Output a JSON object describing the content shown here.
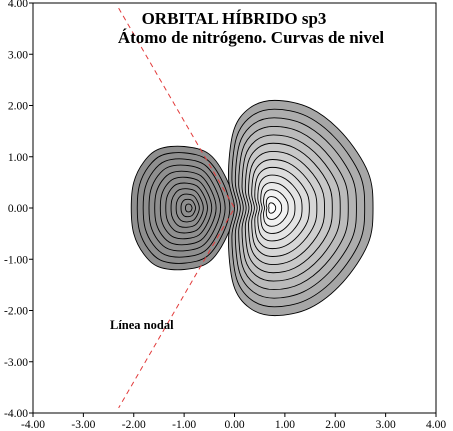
{
  "chart_data": {
    "type": "contour",
    "title": [
      "ORBITAL HÍBRIDO sp3",
      "Átomo de nitrógeno. Curvas de nivel"
    ],
    "xlabel": "",
    "ylabel": "",
    "xlim": [
      -4,
      4
    ],
    "ylim": [
      -4,
      4
    ],
    "xticks": [
      "-4.00",
      "-3.00",
      "-2.00",
      "-1.00",
      "0.00",
      "1.00",
      "2.00",
      "3.00",
      "4.00"
    ],
    "yticks": [
      "-4.00",
      "-3.00",
      "-2.00",
      "-1.00",
      "0.00",
      "1.00",
      "2.00",
      "3.00",
      "4.00"
    ],
    "annotation": "Línea nodal",
    "nodal_line": {
      "points": [
        [
          -2.3,
          3.9
        ],
        [
          0,
          0
        ],
        [
          -2.3,
          -3.9
        ]
      ],
      "color": "#e23b3b",
      "style": "dashed"
    },
    "lobes": [
      {
        "name": "negative",
        "center": [
          -0.9,
          0.0
        ],
        "outer_boundary": [
          [
            -2.0,
            0.5
          ],
          [
            -1.8,
            0.9
          ],
          [
            -1.5,
            1.15
          ],
          [
            -1.0,
            1.2
          ],
          [
            -0.5,
            1.05
          ],
          [
            -0.15,
            0.55
          ],
          [
            0.0,
            0.0
          ],
          [
            -0.15,
            -0.55
          ],
          [
            -0.5,
            -1.05
          ],
          [
            -1.0,
            -1.2
          ],
          [
            -1.5,
            -1.15
          ],
          [
            -1.8,
            -0.9
          ],
          [
            -2.0,
            -0.5
          ],
          [
            -2.05,
            0.0
          ]
        ],
        "levels": 11,
        "fill": "#8f8f8f"
      },
      {
        "name": "positive",
        "center": [
          0.72,
          0.0
        ],
        "outer_boundary": [
          [
            0.0,
            0.0
          ],
          [
            -0.12,
            0.6
          ],
          [
            -0.02,
            1.5
          ],
          [
            0.3,
            1.95
          ],
          [
            0.8,
            2.1
          ],
          [
            1.5,
            1.95
          ],
          [
            2.15,
            1.45
          ],
          [
            2.65,
            0.7
          ],
          [
            2.75,
            0.0
          ],
          [
            2.65,
            -0.7
          ],
          [
            2.15,
            -1.45
          ],
          [
            1.5,
            -1.95
          ],
          [
            0.8,
            -2.1
          ],
          [
            0.3,
            -1.95
          ],
          [
            -0.02,
            -1.5
          ],
          [
            -0.12,
            -0.6
          ]
        ],
        "levels": 14,
        "fill": "#a6a6a6"
      }
    ],
    "grid": false,
    "legend": "none"
  }
}
